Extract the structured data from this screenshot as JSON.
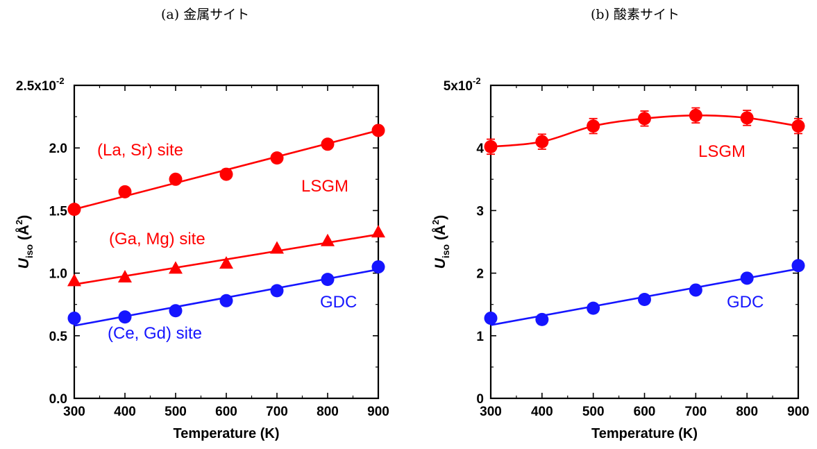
{
  "panels": [
    {
      "title": "(a) 金属サイト"
    },
    {
      "title": "(b) 酸素サイト"
    }
  ],
  "colors": {
    "red": "#ff0000",
    "blue": "#1515ff"
  },
  "chart_data": [
    {
      "type": "scatter",
      "xlabel": "Temperature (K)",
      "ylabel_main": "U",
      "ylabel_sub": "iso",
      "ylabel_rest": "(Å",
      "ylabel_sup": "2",
      "ylabel_close": ")",
      "xlim": [
        300,
        900
      ],
      "ylim": [
        0,
        0.025
      ],
      "xticks": [
        300,
        400,
        500,
        600,
        700,
        800,
        900
      ],
      "xtick_labels": [
        "300",
        "400",
        "500",
        "600",
        "700",
        "800",
        "900"
      ],
      "yticks": [
        0,
        0.005,
        0.01,
        0.015,
        0.02,
        0.025
      ],
      "ytick_labels": [
        "0.0",
        "0.5",
        "1.0",
        "1.5",
        "2.0",
        "2.5x10"
      ],
      "ytick_top_exponent": "-2",
      "x": [
        300,
        400,
        500,
        600,
        700,
        800,
        900
      ],
      "series": [
        {
          "label": "(La, Sr) site",
          "group": "LSGM",
          "color": "#ff0000",
          "marker": "circle",
          "values": [
            0.0151,
            0.0165,
            0.0175,
            0.0179,
            0.0192,
            0.0203,
            0.0214
          ],
          "fit": [
            0.0151,
            0.0214
          ]
        },
        {
          "label": "(Ga, Mg) site",
          "group": "LSGM",
          "color": "#ff0000",
          "marker": "triangle",
          "values": [
            0.0094,
            0.0097,
            0.0104,
            0.0108,
            0.012,
            0.0126,
            0.0133
          ],
          "fit": [
            0.0091,
            0.0131
          ]
        },
        {
          "label": "(Ce, Gd) site",
          "group": "GDC",
          "color": "#1515ff",
          "marker": "circle",
          "values": [
            0.0064,
            0.0065,
            0.007,
            0.0078,
            0.0086,
            0.0095,
            0.0105
          ],
          "fit": [
            0.0058,
            0.0103
          ]
        }
      ],
      "annotations": [
        {
          "text": "(La, Sr) site",
          "color": "#ff0000"
        },
        {
          "text": "LSGM",
          "color": "#ff0000"
        },
        {
          "text": "(Ga, Mg) site",
          "color": "#ff0000"
        },
        {
          "text": "GDC",
          "color": "#1515ff"
        },
        {
          "text": "(Ce, Gd) site",
          "color": "#1515ff"
        }
      ]
    },
    {
      "type": "scatter",
      "xlabel": "Temperature (K)",
      "ylabel_main": "U",
      "ylabel_sub": "iso",
      "ylabel_rest": "(Å",
      "ylabel_sup": "2",
      "ylabel_close": ")",
      "xlim": [
        300,
        900
      ],
      "ylim": [
        0,
        0.05
      ],
      "xticks": [
        300,
        400,
        500,
        600,
        700,
        800,
        900
      ],
      "xtick_labels": [
        "300",
        "400",
        "500",
        "600",
        "700",
        "800",
        "900"
      ],
      "yticks": [
        0,
        0.01,
        0.02,
        0.03,
        0.04,
        0.05
      ],
      "ytick_labels": [
        "0",
        "1",
        "2",
        "3",
        "4",
        "5x10"
      ],
      "ytick_top_exponent": "-2",
      "x": [
        300,
        400,
        500,
        600,
        700,
        800,
        900
      ],
      "series": [
        {
          "label": "LSGM",
          "color": "#ff0000",
          "marker": "circle",
          "connect": "smooth",
          "values": [
            0.0402,
            0.041,
            0.0435,
            0.0447,
            0.0452,
            0.0448,
            0.0435
          ],
          "errors": [
            0.0012,
            0.0012,
            0.0012,
            0.0012,
            0.0012,
            0.0012,
            0.0012
          ]
        },
        {
          "label": "GDC",
          "color": "#1515ff",
          "marker": "circle",
          "values": [
            0.0128,
            0.0126,
            0.0144,
            0.0158,
            0.0173,
            0.0192,
            0.0212
          ],
          "fit": [
            0.0117,
            0.0207
          ]
        }
      ],
      "annotations": [
        {
          "text": "LSGM",
          "color": "#ff0000"
        },
        {
          "text": "GDC",
          "color": "#1515ff"
        }
      ]
    }
  ]
}
